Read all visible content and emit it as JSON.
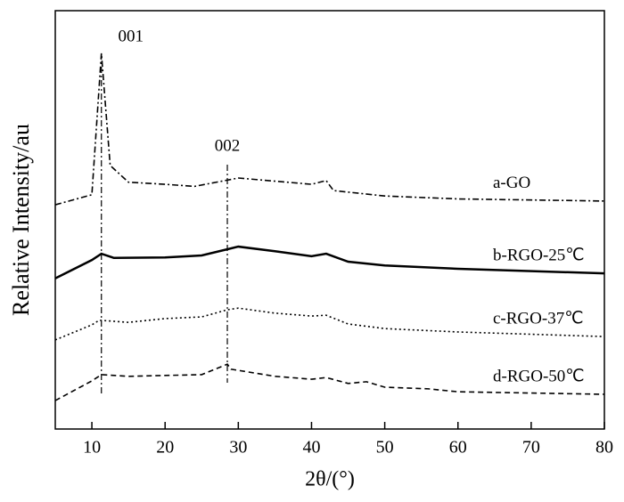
{
  "chart_data": {
    "type": "line",
    "xlabel": "2θ/(°)",
    "ylabel": "Relative Intensity/au",
    "xlim": [
      5,
      80
    ],
    "xticks": [
      10,
      20,
      30,
      40,
      50,
      60,
      70,
      80
    ],
    "ylim": [
      0,
      100
    ],
    "annotations": [
      {
        "text": "001",
        "x": 11.3
      },
      {
        "text": "002",
        "x": 28.5
      }
    ],
    "series": [
      {
        "name": "a-GO",
        "color": "#000000",
        "dash": "dash-dot",
        "x": [
          5,
          10,
          11.3,
          12.5,
          15,
          20,
          24,
          30,
          40,
          42,
          43,
          50,
          60,
          80
        ],
        "values": [
          53.6,
          56,
          89.8,
          63,
          59,
          58.5,
          58,
          60,
          58.5,
          59.4,
          57,
          55.7,
          55,
          54.5
        ]
      },
      {
        "name": "b-RGO-25℃",
        "color": "#000000",
        "dash": "solid",
        "x": [
          5,
          10,
          11.3,
          13,
          20,
          25,
          30,
          35,
          40,
          42,
          45,
          50,
          60,
          80
        ],
        "values": [
          36,
          40.4,
          41.9,
          40.9,
          41,
          41.5,
          43.6,
          42.5,
          41.3,
          41.9,
          40,
          39.1,
          38.3,
          37.2
        ]
      },
      {
        "name": "c-RGO-37℃",
        "color": "#000000",
        "dash": "dotted",
        "x": [
          5,
          10,
          11,
          15,
          20,
          25,
          28.5,
          30,
          35,
          40,
          42,
          45,
          50,
          60,
          80
        ],
        "values": [
          21.3,
          24.9,
          26,
          25.5,
          26.4,
          26.8,
          28.5,
          28.9,
          27.7,
          27,
          27.2,
          25.1,
          24,
          23.2,
          22.1
        ]
      },
      {
        "name": "d-RGO-50℃",
        "color": "#000000",
        "dash": "dashed",
        "x": [
          5,
          10,
          11.3,
          15,
          20,
          25,
          28.5,
          29,
          35,
          40,
          42,
          45,
          47.5,
          50,
          56,
          60,
          80
        ],
        "values": [
          6.8,
          11.5,
          13,
          12.6,
          12.8,
          13,
          15.5,
          14.3,
          12.6,
          11.9,
          12.3,
          10.9,
          11.3,
          10,
          9.6,
          8.9,
          8.3
        ]
      }
    ]
  }
}
